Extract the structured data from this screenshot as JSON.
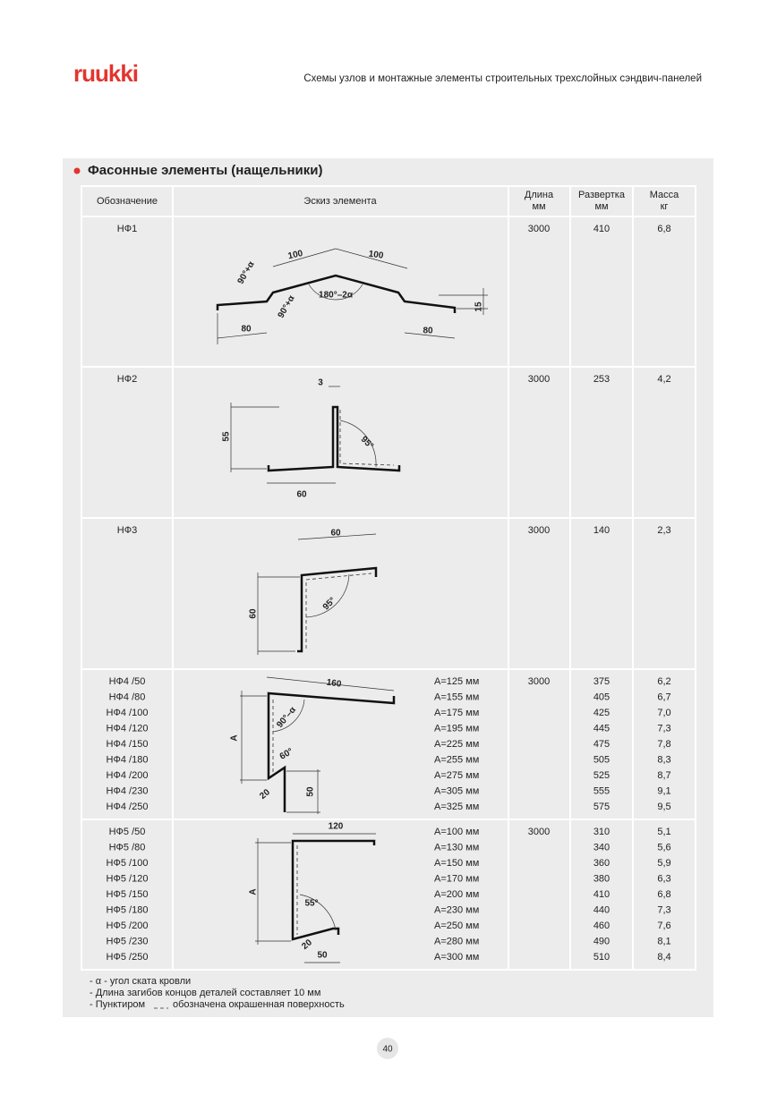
{
  "header": {
    "logo": "ruukki",
    "title": "Схемы узлов и монтажные элементы строительных трехслойных сэндвич-панелей"
  },
  "section_title": "Фасонные элементы (нащельники)",
  "table": {
    "columns": [
      {
        "name": "Обозначение"
      },
      {
        "name": "Эскиз элемента"
      },
      {
        "name": "Длина",
        "unit": "мм"
      },
      {
        "name": "Развертка",
        "unit": "мм"
      },
      {
        "name": "Масса",
        "unit": "кг"
      }
    ],
    "rows": [
      {
        "designations": [
          "НФ1"
        ],
        "sketch_labels": [
          "100",
          "100",
          "90°+α",
          "90°+α",
          "180°–2α",
          "80",
          "80",
          "15"
        ],
        "length": 3000,
        "development": [
          410
        ],
        "mass": [
          "6,8"
        ]
      },
      {
        "designations": [
          "НФ2"
        ],
        "sketch_labels": [
          "3",
          "55",
          "95°",
          "60"
        ],
        "length": 3000,
        "development": [
          253
        ],
        "mass": [
          "4,2"
        ]
      },
      {
        "designations": [
          "НФ3"
        ],
        "sketch_labels": [
          "60",
          "60",
          "95°"
        ],
        "length": 3000,
        "development": [
          140
        ],
        "mass": [
          "2,3"
        ]
      },
      {
        "designations": [
          "НФ4 /50",
          "НФ4 /80",
          "НФ4 /100",
          "НФ4 /120",
          "НФ4 /150",
          "НФ4 /180",
          "НФ4 /200",
          "НФ4 /230",
          "НФ4 /250"
        ],
        "sketch_labels": [
          "160",
          "A",
          "90°–α",
          "60°",
          "20",
          "50"
        ],
        "a_values": [
          "A=125 мм",
          "A=155 мм",
          "A=175 мм",
          "A=195 мм",
          "A=225 мм",
          "A=255 мм",
          "A=275 мм",
          "A=305 мм",
          "A=325 мм"
        ],
        "length": 3000,
        "development": [
          375,
          405,
          425,
          445,
          475,
          505,
          525,
          555,
          575
        ],
        "mass": [
          "6,2",
          "6,7",
          "7,0",
          "7,3",
          "7,8",
          "8,3",
          "8,7",
          "9,1",
          "9,5"
        ]
      },
      {
        "designations": [
          "НФ5 /50",
          "НФ5 /80",
          "НФ5 /100",
          "НФ5 /120",
          "НФ5 /150",
          "НФ5 /180",
          "НФ5 /200",
          "НФ5 /230",
          "НФ5 /250"
        ],
        "sketch_labels": [
          "120",
          "A",
          "55°",
          "20",
          "50"
        ],
        "a_values": [
          "A=100 мм",
          "A=130 мм",
          "A=150 мм",
          "A=170 мм",
          "A=200 мм",
          "A=230 мм",
          "A=250 мм",
          "A=280 мм",
          "A=300 мм"
        ],
        "length": 3000,
        "development": [
          310,
          340,
          360,
          380,
          410,
          440,
          460,
          490,
          510
        ],
        "mass": [
          "5,1",
          "5,6",
          "5,9",
          "6,3",
          "6,8",
          "7,3",
          "7,6",
          "8,1",
          "8,4"
        ]
      }
    ]
  },
  "notes": [
    "- α - угол ската кровли",
    "- Длина загибов концов деталей составляет 10 мм",
    [
      "- Пунктиром",
      "обозначена окрашенная поверхность"
    ]
  ],
  "page_number": 40
}
